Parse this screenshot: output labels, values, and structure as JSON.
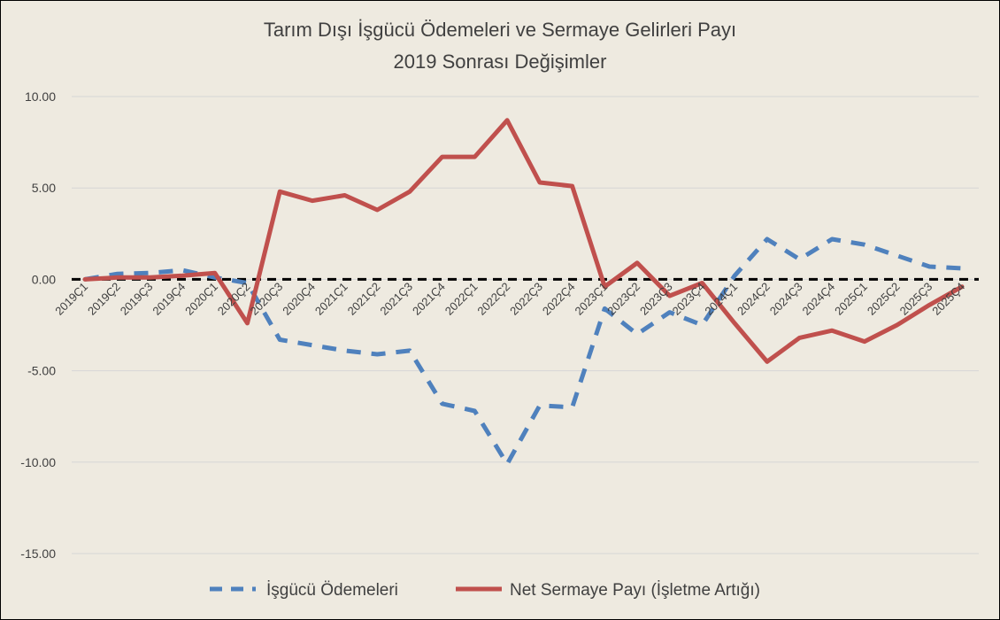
{
  "chart_data": {
    "type": "line",
    "title": [
      "Tarım Dışı İşgücü Ödemeleri ve Sermaye Gelirleri Payı",
      "2019 Sonrası Değişimler"
    ],
    "xlabel": "",
    "ylabel": "",
    "ylim": [
      -15,
      10
    ],
    "yticks": [
      10,
      5,
      0,
      -5,
      -10,
      -15
    ],
    "ytick_labels": [
      "10.00",
      "5.00",
      "0.00",
      "-5.00",
      "-10.00",
      "-15.00"
    ],
    "grid": true,
    "legend": "bottom",
    "categories": [
      "2019Ç1",
      "2019Ç2",
      "2019Ç3",
      "2019Ç4",
      "2020Ç1",
      "2020Ç2",
      "2020Ç3",
      "2020Ç4",
      "2021Ç1",
      "2021Ç2",
      "2021Ç3",
      "2021Ç4",
      "2022Ç1",
      "2022Ç2",
      "2022Ç3",
      "2022Ç4",
      "2023Ç1",
      "2023Ç2",
      "2023Ç3",
      "2023Ç4",
      "2024Ç1",
      "2024Ç2",
      "2024Ç3",
      "2024Ç4",
      "2025Ç1",
      "2025Ç2",
      "2025Ç3",
      "2025Ç4"
    ],
    "series": [
      {
        "name": "İşgücü Ödemeleri",
        "color": "#4F81BD",
        "dashed": true,
        "values": [
          0.0,
          0.3,
          0.35,
          0.5,
          0.1,
          -0.2,
          -3.3,
          -3.6,
          -3.9,
          -4.1,
          -3.9,
          -6.8,
          -7.2,
          -10.1,
          -6.9,
          -7.0,
          -1.6,
          -3.0,
          -1.8,
          -2.5,
          0.2,
          2.2,
          1.1,
          2.2,
          1.9,
          1.3,
          0.7,
          0.6
        ]
      },
      {
        "name": "Net Sermaye Payı (İşletme Artığı)",
        "color": "#C0504D",
        "dashed": false,
        "values": [
          0.0,
          0.1,
          0.1,
          0.2,
          0.35,
          -2.4,
          4.8,
          4.3,
          4.6,
          3.8,
          4.8,
          6.7,
          6.7,
          8.7,
          5.3,
          5.1,
          -0.4,
          0.9,
          -0.9,
          -0.2,
          -2.4,
          -4.5,
          -3.2,
          -2.8,
          -3.4,
          -2.5,
          -1.4,
          -0.4
        ]
      }
    ],
    "zero_line": {
      "color": "#000000",
      "dashed": true
    }
  }
}
